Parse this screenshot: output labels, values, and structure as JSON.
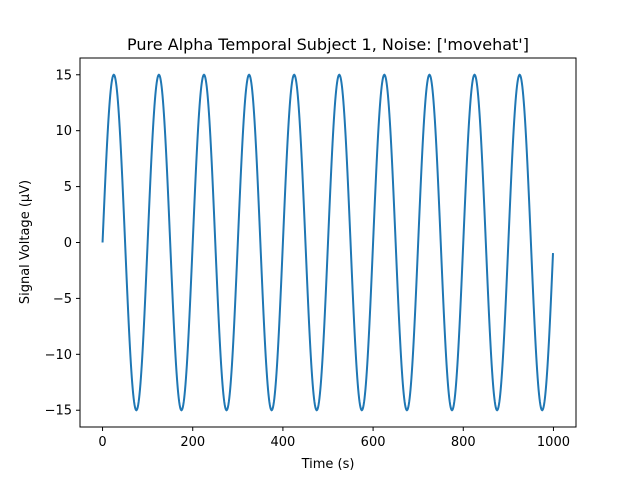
{
  "chart_data": {
    "type": "line",
    "title": "Pure Alpha Temporal Subject 1, Noise: ['movehat']",
    "xlabel": "Time (s)",
    "ylabel": "Signal Voltage (μV)",
    "xlim": [
      -50,
      1050
    ],
    "ylim": [
      -16.5,
      16.5
    ],
    "x_ticks": [
      0,
      200,
      400,
      600,
      800,
      1000
    ],
    "x_tick_labels": [
      "0",
      "200",
      "400",
      "600",
      "800",
      "1000"
    ],
    "y_ticks": [
      -15,
      -10,
      -5,
      0,
      5,
      10,
      15
    ],
    "y_tick_labels": [
      "−15",
      "−10",
      "−5",
      "0",
      "5",
      "10",
      "15"
    ],
    "grid": false,
    "series": [
      {
        "color": "#1f77b4",
        "function": "sine",
        "amplitude": 15,
        "period": 100,
        "x_start": 0,
        "x_end": 999,
        "peaks_x": [
          25,
          125,
          225,
          325,
          425,
          525,
          625,
          725,
          825,
          925
        ],
        "troughs_x": [
          75,
          175,
          275,
          375,
          475,
          575,
          675,
          775,
          875,
          975
        ],
        "start_value": 0,
        "end_value": -0.9
      }
    ]
  }
}
